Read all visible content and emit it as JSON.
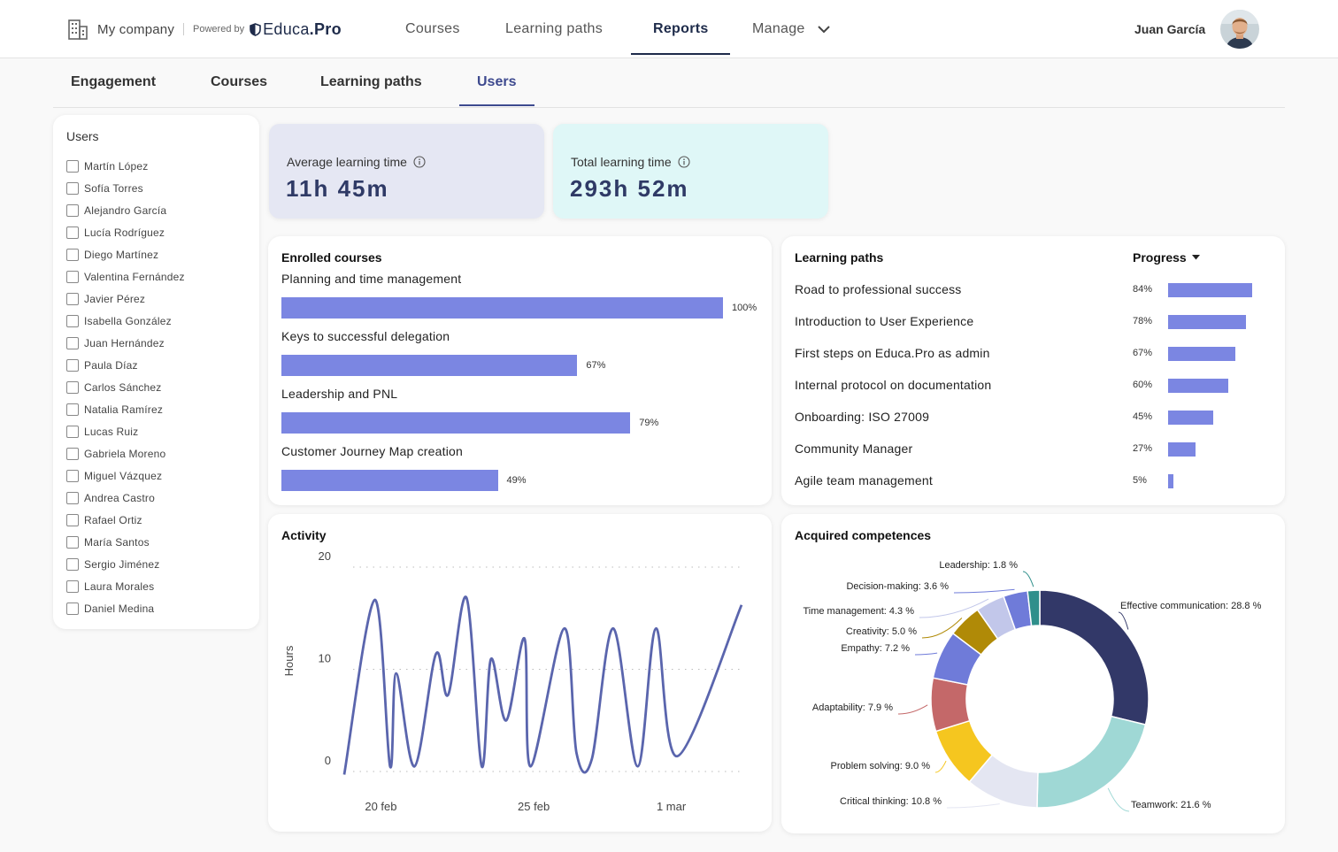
{
  "header": {
    "company": "My company",
    "powered_by": "Powered by",
    "logo_main": "Educa",
    "logo_suffix": ".Pro",
    "nav": [
      {
        "label": "Courses"
      },
      {
        "label": "Learning paths"
      },
      {
        "label": "Reports",
        "active": true
      },
      {
        "label": "Manage"
      }
    ],
    "user_name": "Juan García",
    "icons": {
      "company": "building-icon",
      "logo": "shield-logo-icon",
      "manage": "chevron-down-icon"
    }
  },
  "subtabs": [
    {
      "label": "Engagement"
    },
    {
      "label": "Courses"
    },
    {
      "label": "Learning paths"
    },
    {
      "label": "Users",
      "active": true
    }
  ],
  "users_panel": {
    "title": "Users",
    "users": [
      "Martín López",
      "Sofía Torres",
      "Alejandro García",
      "Lucía Rodríguez",
      "Diego Martínez",
      "Valentina Fernández",
      "Javier Pérez",
      "Isabella González",
      "Juan Hernández",
      "Paula Díaz",
      "Carlos Sánchez",
      "Natalia Ramírez",
      "Lucas Ruiz",
      "Gabriela Moreno",
      "Miguel Vázquez",
      "Andrea Castro",
      "Rafael Ortiz",
      "María Santos",
      "Sergio Jiménez",
      "Laura Morales",
      "Daniel Medina"
    ]
  },
  "kpis": {
    "average": {
      "label": "Average learning time",
      "value": "11h 45m",
      "bg": "#e5e7f3"
    },
    "total": {
      "label": "Total learning time",
      "value": "293h 52m",
      "bg": "#dff7f7"
    }
  },
  "enrolled": {
    "title": "Enrolled courses",
    "courses": [
      {
        "name": "Planning and time management",
        "pct": 100,
        "label": "100%"
      },
      {
        "name": "Keys to successful delegation",
        "pct": 67,
        "label": "67%"
      },
      {
        "name": "Leadership and PNL",
        "pct": 79,
        "label": "79%"
      },
      {
        "name": "Customer Journey Map creation",
        "pct": 49,
        "label": "49%"
      }
    ]
  },
  "learning_paths": {
    "title": "Learning paths",
    "sort_label": "Progress",
    "items": [
      {
        "name": "Road to professional success",
        "pct": 84,
        "label": "84%"
      },
      {
        "name": "Introduction to User Experience",
        "pct": 78,
        "label": "78%"
      },
      {
        "name": "First steps on Educa.Pro as admin",
        "pct": 67,
        "label": "67%"
      },
      {
        "name": "Internal protocol on documentation",
        "pct": 60,
        "label": "60%"
      },
      {
        "name": "Onboarding: ISO 27009",
        "pct": 45,
        "label": "45%"
      },
      {
        "name": "Community Manager",
        "pct": 27,
        "label": "27%"
      },
      {
        "name": "Agile team management",
        "pct": 5,
        "label": "5%"
      }
    ]
  },
  "activity": {
    "title": "Activity",
    "chart_data": {
      "type": "line",
      "ylabel": "Hours",
      "ylim": [
        0,
        20
      ],
      "yticks": [
        0,
        10,
        20
      ],
      "grid": "dotted horizontal",
      "xticks": [
        {
          "label": "20 feb",
          "x": 18.5
        },
        {
          "label": "25 feb",
          "x": 23.5
        },
        {
          "label": "1 mar",
          "x": 28
        }
      ],
      "xlim": [
        17.3,
        30.3
      ],
      "points": [
        {
          "x": 17.3,
          "y": -0.3
        },
        {
          "x": 18.3,
          "y": 16.8
        },
        {
          "x": 18.8,
          "y": 0.5
        },
        {
          "x": 19.0,
          "y": 9.6
        },
        {
          "x": 19.6,
          "y": 0.5
        },
        {
          "x": 20.3,
          "y": 11.5
        },
        {
          "x": 20.7,
          "y": 7.5
        },
        {
          "x": 21.3,
          "y": 17.0
        },
        {
          "x": 21.8,
          "y": 0.5
        },
        {
          "x": 22.1,
          "y": 11.0
        },
        {
          "x": 22.6,
          "y": 5.0
        },
        {
          "x": 23.2,
          "y": 13.0
        },
        {
          "x": 23.4,
          "y": 0.5
        },
        {
          "x": 24.5,
          "y": 14.0
        },
        {
          "x": 24.9,
          "y": 1.8
        },
        {
          "x": 25.4,
          "y": 1.2
        },
        {
          "x": 26.1,
          "y": 14.0
        },
        {
          "x": 26.9,
          "y": 0.5
        },
        {
          "x": 27.5,
          "y": 14.0
        },
        {
          "x": 28.2,
          "y": 1.5
        },
        {
          "x": 30.3,
          "y": 16.3
        }
      ],
      "color": "#5a65ad"
    }
  },
  "competences": {
    "title": "Acquired competences",
    "chart_data": {
      "type": "pie",
      "donut": true,
      "slices": [
        {
          "label": "Effective communication: 28.8 %",
          "value": 28.8,
          "color": "#323868"
        },
        {
          "label": "Teamwork: 21.6 %",
          "value": 21.6,
          "color": "#9fd8d5"
        },
        {
          "label": "Critical thinking: 10.8 %",
          "value": 10.8,
          "color": "#e4e6f2"
        },
        {
          "label": "Problem solving: 9.0 %",
          "value": 9.0,
          "color": "#f5c61f"
        },
        {
          "label": "Adaptability: 7.9 %",
          "value": 7.9,
          "color": "#c46869"
        },
        {
          "label": "Empathy: 7.2 %",
          "value": 7.2,
          "color": "#6f7bd9"
        },
        {
          "label": "Creativity: 5.0 %",
          "value": 5.0,
          "color": "#b08a07"
        },
        {
          "label": "Time management: 4.3 %",
          "value": 4.3,
          "color": "#c2c7ea"
        },
        {
          "label": "Decision-making: 3.6 %",
          "value": 3.6,
          "color": "#6f7bd9"
        },
        {
          "label": "Leadership: 1.8 %",
          "value": 1.8,
          "color": "#2f8f8b"
        }
      ]
    }
  }
}
